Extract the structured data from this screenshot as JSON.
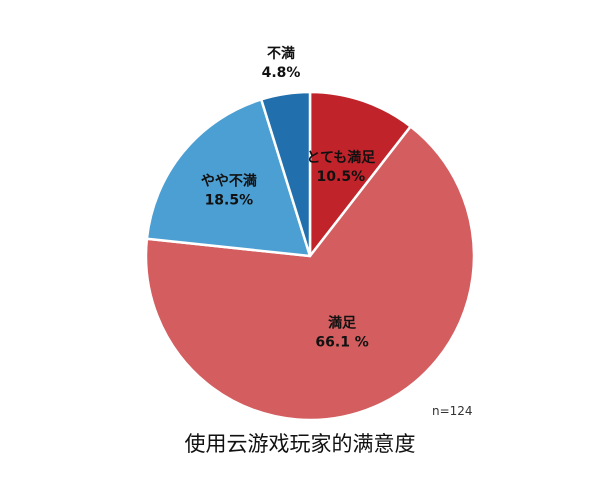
{
  "chart_data": {
    "type": "pie",
    "categories": [
      "とても満足",
      "満足",
      "やや不満",
      "不満"
    ],
    "values": [
      10.5,
      66.1,
      18.5,
      4.8
    ],
    "value_labels": [
      "10.5%",
      "66.1 %",
      "18.5%",
      "4.8%"
    ],
    "colors": [
      "#c0232a",
      "#d35d5f",
      "#4c9fd3",
      "#2170ad"
    ],
    "start": "12 o'clock",
    "direction": "clockwise",
    "sample_size": "n=124",
    "caption": "使用云游戏玩家的满意度"
  }
}
